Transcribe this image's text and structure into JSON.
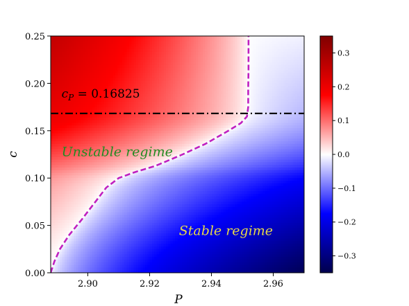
{
  "chart_data": {
    "type": "heatmap",
    "xlabel": "P",
    "ylabel": "c",
    "xlim": [
      2.888,
      2.97
    ],
    "ylim": [
      0.0,
      0.25
    ],
    "x_ticks": [
      2.9,
      2.92,
      2.94,
      2.96
    ],
    "x_tick_labels": [
      "2.90",
      "2.92",
      "2.94",
      "2.96"
    ],
    "y_ticks": [
      0.0,
      0.05,
      0.1,
      0.15,
      0.2,
      0.25
    ],
    "y_tick_labels": [
      "0.00",
      "0.05",
      "0.10",
      "0.15",
      "0.20",
      "0.25"
    ],
    "colormap": "seismic",
    "colorbar": {
      "range": [
        -0.35,
        0.35
      ],
      "ticks": [
        -0.3,
        -0.2,
        -0.1,
        0.0,
        0.1,
        0.2,
        0.3
      ],
      "tick_labels": [
        "−0.3",
        "−0.2",
        "−0.1",
        "0.0",
        "0.1",
        "0.2",
        "0.3"
      ]
    },
    "colors": {
      "boundary": "#c020c0",
      "critical_line": "#000000",
      "unstable_text": "#228b22",
      "stable_text": "#e6d84a"
    },
    "stability_boundary": {
      "style": "dashed",
      "points": [
        [
          2.888,
          0.0
        ],
        [
          2.8892,
          0.012
        ],
        [
          2.891,
          0.025
        ],
        [
          2.894,
          0.04
        ],
        [
          2.898,
          0.056
        ],
        [
          2.902,
          0.073
        ],
        [
          2.906,
          0.09
        ],
        [
          2.91,
          0.1
        ],
        [
          2.915,
          0.106
        ],
        [
          2.922,
          0.113
        ],
        [
          2.93,
          0.124
        ],
        [
          2.938,
          0.136
        ],
        [
          2.945,
          0.149
        ],
        [
          2.9495,
          0.158
        ],
        [
          2.9515,
          0.165
        ],
        [
          2.9519,
          0.175
        ],
        [
          2.9519,
          0.195
        ],
        [
          2.952,
          0.215
        ],
        [
          2.952,
          0.25
        ]
      ]
    },
    "critical_line": {
      "y": 0.16825,
      "style": "dash-dot"
    },
    "annotations": {
      "cp_label": {
        "symbol": "c",
        "subscript": "P",
        "text": " = 0.16825",
        "x": 2.8915,
        "y": 0.185
      },
      "unstable_label": {
        "text": "Unstable regime",
        "x": 2.8915,
        "y": 0.123
      },
      "stable_label": {
        "text": "Stable regime",
        "x": 2.9295,
        "y": 0.04
      }
    }
  }
}
